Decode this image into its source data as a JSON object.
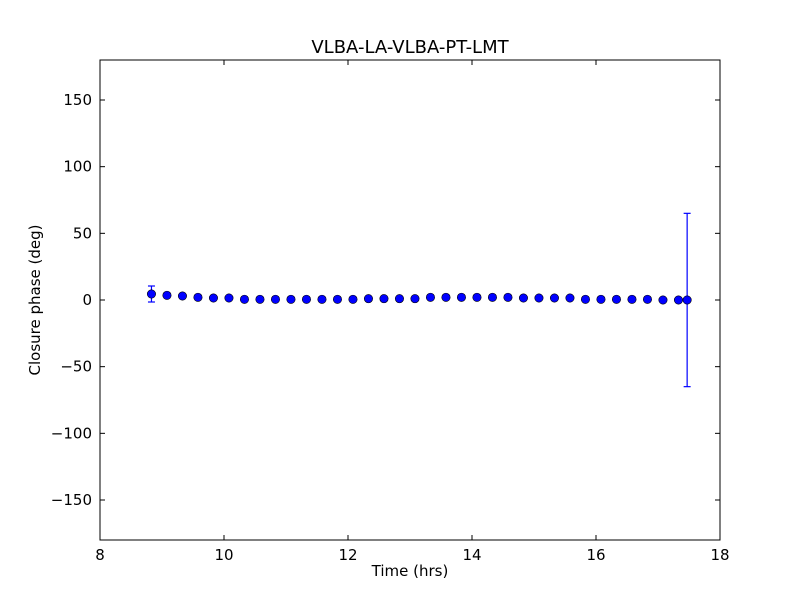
{
  "chart_data": {
    "type": "scatter",
    "title": "VLBA-LA-VLBA-PT-LMT",
    "xlabel": "Time (hrs)",
    "ylabel": "Closure phase (deg)",
    "xlim": [
      8,
      18
    ],
    "ylim": [
      -180,
      180
    ],
    "xticks": [
      8,
      10,
      12,
      14,
      16,
      18
    ],
    "yticks": [
      -150,
      -100,
      -50,
      0,
      50,
      100,
      150
    ],
    "grid": false,
    "marker_color": "#0000ff",
    "errorbar_color": "#0000ff",
    "series": [
      {
        "x": [
          8.83,
          9.08,
          9.33,
          9.58,
          9.83,
          10.08,
          10.33,
          10.58,
          10.83,
          11.08,
          11.33,
          11.58,
          11.83,
          12.08,
          12.33,
          12.58,
          12.83,
          13.08,
          13.33,
          13.58,
          13.83,
          14.08,
          14.33,
          14.58,
          14.83,
          15.08,
          15.33,
          15.58,
          15.83,
          16.08,
          16.33,
          16.58,
          16.83,
          17.08,
          17.33,
          17.47
        ],
        "y": [
          4.5,
          3.5,
          3,
          2,
          1.5,
          1.5,
          0.5,
          0.5,
          0.5,
          0.5,
          0.5,
          0.5,
          0.5,
          0.5,
          1,
          1,
          1,
          1,
          2,
          2,
          2,
          2,
          2,
          2,
          1.5,
          1.5,
          1.5,
          1.5,
          0.5,
          0.5,
          0.5,
          0.5,
          0.5,
          0,
          0,
          0
        ],
        "yerr": [
          6,
          1,
          1,
          1,
          1,
          1,
          1,
          1,
          1,
          1,
          1,
          1,
          1,
          1,
          1,
          1,
          1,
          1,
          1,
          1,
          1,
          1,
          1,
          1,
          1,
          1,
          1,
          1,
          1,
          1,
          1,
          1,
          1,
          1,
          1,
          65
        ]
      }
    ]
  }
}
